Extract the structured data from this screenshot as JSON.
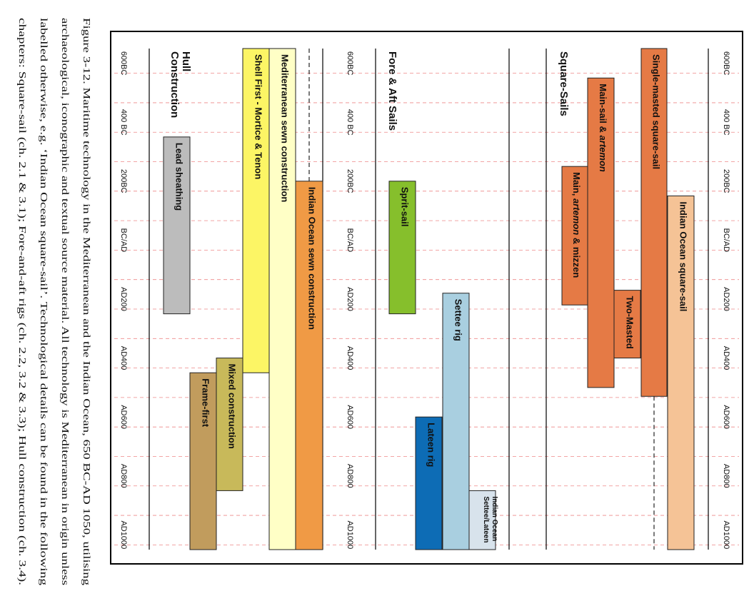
{
  "caption": {
    "lines": [
      "Figure 3-12. Maritime technology in the Mediterranean and the Indian Ocean, 650 BC-AD 1050, utilising",
      "archaeological, iconographic and textual source material. All technology is Mediterranean in origin unless",
      "labelled otherwise, e.g. ‘Indian Ocean square-sail’. Technological details can be found in the following",
      "chapters: Square-sail (ch. 2.1 & 3.1); Fore-and-aft rigs (ch. 2.2, 3.2 & 3.3); Hull construction (ch. 3.4)."
    ]
  },
  "chart_data": {
    "type": "bar",
    "orientation": "horizontal timeline (figure rotated 90° clockwise)",
    "time_axis": {
      "range": [
        -650,
        1050
      ],
      "tick_labels": [
        "600BC",
        "400 BC",
        "200BC",
        "BC/AD",
        "AD200",
        "AD400",
        "AD600",
        "AD800",
        "AD1000"
      ],
      "tick_values": [
        -600,
        -400,
        -200,
        0,
        200,
        400,
        600,
        800,
        1000
      ],
      "grid": true
    },
    "sections": [
      {
        "title": "Square-Sails",
        "bars": [
          {
            "label": "Single-masted square-sail",
            "start": -650,
            "end": 530,
            "color": "#e57a45",
            "dashed_extension_to": 1050
          },
          {
            "label": "Indian Ocean square-sail",
            "start": -150,
            "end": 1050,
            "color": "#f5c396"
          },
          {
            "label": "Main-sail & artemon",
            "start": -550,
            "end": 500,
            "color": "#e57a45"
          },
          {
            "label": "Two-Masted",
            "start": 170,
            "end": 400,
            "color": "#e57a45"
          },
          {
            "label": "Main, artemon & mizzen",
            "start": -250,
            "end": 220,
            "color": "#e57a45"
          }
        ]
      },
      {
        "title": "Fore & Aft Sails",
        "bars": [
          {
            "label": "Sprit-sail",
            "start": -200,
            "end": 250,
            "color": "#86bf2c"
          },
          {
            "label": "Settee rig",
            "start": 180,
            "end": 1050,
            "color": "#a9cfe0"
          },
          {
            "label": "Lateen rig",
            "start": 600,
            "end": 1050,
            "color": "#0d6cb5"
          },
          {
            "label": "Indian Ocean Settee/Lateen",
            "start": 850,
            "end": 1050,
            "color": "#d8e3ec"
          }
        ]
      },
      {
        "title": "Hull Construction",
        "bars": [
          {
            "label": "Indian Ocean sewn construction",
            "start": -200,
            "end": 1050,
            "color": "#f09a45",
            "dashed_extension_to": -650
          },
          {
            "label": "Mediterranean sewn construction",
            "start": -650,
            "end": 1050,
            "color": "#ffffc6"
          },
          {
            "label": "Shell First - Mortice & Tenon",
            "start": -650,
            "end": 450,
            "color": "#fcf565"
          },
          {
            "label": "Mixed construction",
            "start": 400,
            "end": 850,
            "color": "#c8b95a"
          },
          {
            "label": "Frame-first",
            "start": 450,
            "end": 1050,
            "color": "#c19c5d"
          },
          {
            "label": "Lead sheathing",
            "start": -350,
            "end": 250,
            "color": "#bcbcbc"
          }
        ]
      }
    ]
  }
}
